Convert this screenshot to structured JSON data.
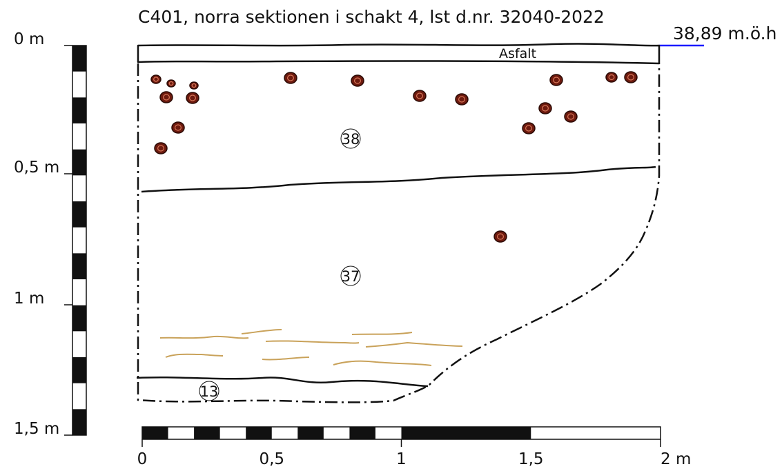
{
  "header": {
    "title": "C401, norra sektionen i schakt 4, lst d.nr. 32040-2022",
    "elevation": "38,89 m.ö.h"
  },
  "vertical_scale": {
    "labels": [
      "0 m",
      "0,5 m",
      "1 m",
      "1,5 m"
    ]
  },
  "horizontal_scale": {
    "labels": [
      "0",
      "0,5",
      "1",
      "1,5",
      "2 m"
    ]
  },
  "layers": [
    {
      "label": "Asfalt"
    },
    {
      "label": "38"
    },
    {
      "label": "37"
    },
    {
      "label": "13"
    }
  ]
}
